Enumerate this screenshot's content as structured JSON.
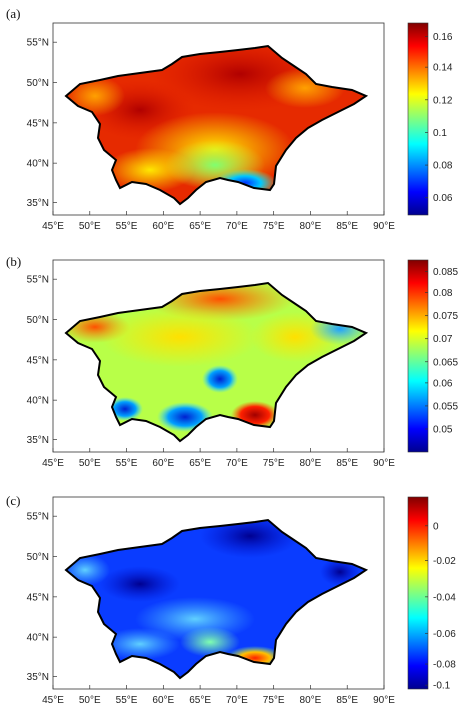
{
  "panels": [
    {
      "label": "(a)",
      "colorbar": {
        "ticks": [
          "0.16",
          "0.14",
          "0.12",
          "0.1",
          "0.08",
          "0.06"
        ]
      },
      "lat_ticks": [
        "55°N",
        "50°N",
        "45°N",
        "40°N",
        "35°N"
      ],
      "lon_ticks": [
        "45°E",
        "50°E",
        "55°E",
        "60°E",
        "65°E",
        "70°E",
        "75°E",
        "80°E",
        "85°E",
        "90°E"
      ]
    },
    {
      "label": "(b)",
      "colorbar": {
        "ticks": [
          "0.085",
          "0.08",
          "0.075",
          "0.07",
          "0.065",
          "0.06",
          "0.055",
          "0.05"
        ]
      },
      "lat_ticks": [
        "55°N",
        "50°N",
        "45°N",
        "40°N",
        "35°N"
      ],
      "lon_ticks": [
        "45°E",
        "50°E",
        "55°E",
        "60°E",
        "65°E",
        "70°E",
        "75°E",
        "80°E",
        "85°E",
        "90°E"
      ]
    },
    {
      "label": "(c)",
      "colorbar": {
        "ticks": [
          "0",
          "-0.02",
          "-0.04",
          "-0.06",
          "-0.08",
          "-0.1"
        ]
      },
      "lat_ticks": [
        "55°N",
        "50°N",
        "45°N",
        "40°N",
        "35°N"
      ],
      "lon_ticks": [
        "45°E",
        "50°E",
        "55°E",
        "60°E",
        "65°E",
        "70°E",
        "75°E",
        "80°E",
        "85°E",
        "90°E"
      ]
    }
  ],
  "colors": {
    "jet_high": "#a50000",
    "jet_low": "#00008f"
  }
}
